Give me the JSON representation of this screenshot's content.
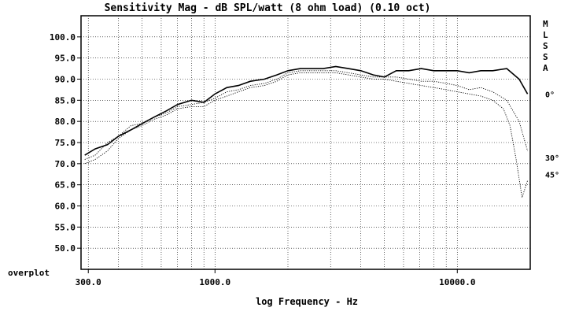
{
  "chart_data": {
    "type": "line",
    "title": "Sensitivity Mag - dB SPL/watt (8 ohm load) (0.10 oct)",
    "xlabel": "log Frequency - Hz",
    "ylabel": "",
    "x_scale": "log",
    "xlim": [
      280,
      20000
    ],
    "ylim": [
      45,
      105
    ],
    "y_ticks": [
      "100.0",
      "95.0",
      "90.0",
      "85.0",
      "80.0",
      "75.0",
      "70.0",
      "65.0",
      "60.0",
      "55.0",
      "50.0"
    ],
    "x_ticks": [
      {
        "value": 300,
        "label": "300.0"
      },
      {
        "value": 1000,
        "label": "1000.0"
      },
      {
        "value": 10000,
        "label": "10000.0"
      }
    ],
    "corner_label": "overplot",
    "side_legend": [
      "M",
      "L",
      "S",
      "S",
      "A"
    ],
    "angle_labels": [
      {
        "label": "0°",
        "y": 86.5
      },
      {
        "label": "30°",
        "y": 71.5
      },
      {
        "label": "45°",
        "y": 67.5
      }
    ],
    "grid": true,
    "series": [
      {
        "style": "solid",
        "x": [
          290,
          320,
          360,
          400,
          450,
          500,
          560,
          630,
          700,
          800,
          900,
          1000,
          1120,
          1250,
          1400,
          1600,
          1800,
          2000,
          2250,
          2500,
          2800,
          3150,
          3550,
          4000,
          4500,
          5000,
          5600,
          6300,
          7100,
          8000,
          9000,
          10000,
          11200,
          12500,
          14000,
          16000,
          18000,
          19500
        ],
        "y": [
          72,
          73.5,
          74.5,
          76.5,
          78,
          79.5,
          81,
          82.5,
          84,
          85,
          84.5,
          86.5,
          88,
          88.5,
          89.5,
          90,
          91,
          92,
          92.5,
          92.5,
          92.5,
          93,
          92.5,
          92,
          91,
          90.5,
          92,
          92,
          92.5,
          92,
          92,
          92,
          91.5,
          92,
          92,
          92.5,
          90,
          86.5
        ]
      },
      {
        "style": "dotted",
        "x": [
          290,
          320,
          360,
          400,
          450,
          500,
          560,
          630,
          700,
          800,
          900,
          1000,
          1120,
          1250,
          1400,
          1600,
          1800,
          2000,
          2250,
          2500,
          2800,
          3150,
          3550,
          4000,
          4500,
          5000,
          5600,
          6300,
          7100,
          8000,
          9000,
          10000,
          11200,
          12500,
          14000,
          16000,
          18000,
          19500
        ],
        "y": [
          71,
          72,
          75,
          76.5,
          79,
          79.5,
          81,
          82,
          83.5,
          84,
          84.5,
          85.5,
          87,
          87.5,
          88.5,
          89,
          90,
          91.5,
          92,
          92,
          92,
          92,
          91.5,
          91,
          90.5,
          90.5,
          90.5,
          90,
          89.5,
          89.5,
          89,
          88.5,
          87.5,
          88,
          87,
          85,
          80,
          73
        ]
      },
      {
        "style": "dotted",
        "x": [
          290,
          320,
          360,
          400,
          450,
          500,
          560,
          630,
          700,
          800,
          900,
          1000,
          1120,
          1250,
          1400,
          1600,
          1800,
          2000,
          2250,
          2500,
          2800,
          3150,
          3550,
          4000,
          4500,
          5000,
          5600,
          6300,
          7100,
          8000,
          9000,
          10000,
          11200,
          12500,
          14000,
          15500,
          16500,
          17500,
          18500,
          19500
        ],
        "y": [
          70,
          71,
          73,
          76,
          78,
          79,
          80.5,
          81.5,
          83,
          83.5,
          83.5,
          85,
          86,
          87,
          88,
          88.5,
          89.5,
          91,
          91.5,
          91.5,
          91.5,
          91.5,
          91,
          90.5,
          90,
          90,
          89.5,
          89,
          88.5,
          88,
          87.5,
          87,
          86.5,
          86,
          85,
          83,
          79,
          71,
          62,
          66
        ]
      }
    ]
  }
}
